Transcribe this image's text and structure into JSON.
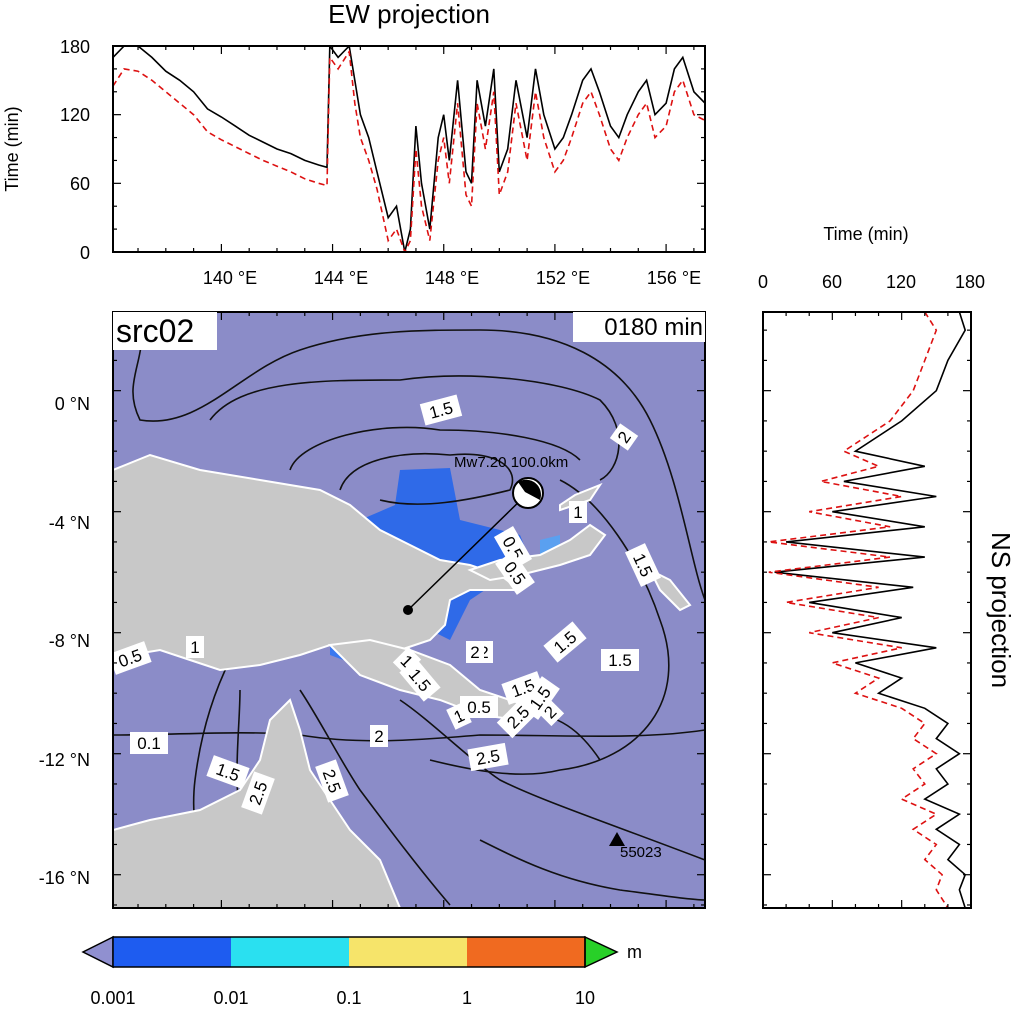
{
  "ew_panel": {
    "title": "EW projection",
    "ylabel": "Time (min)",
    "y_ticks": [
      "0",
      "60",
      "120",
      "180"
    ],
    "x_ticks": [
      "140 °E",
      "144 °E",
      "148 °E",
      "152 °E",
      "156 °E"
    ]
  },
  "ns_panel": {
    "title": "NS projection",
    "xlabel": "Time (min)",
    "x_ticks": [
      "0",
      "60",
      "120",
      "180"
    ]
  },
  "map": {
    "label": "src02",
    "time_label": "0180 min",
    "lat_ticks": [
      "0 °N",
      "-4 °N",
      "-8 °N",
      "-12 °N",
      "-16 °N"
    ],
    "event_label": "Mw7.20 100.0km",
    "station_label": "55023",
    "contour_labels": [
      "1.5",
      "2",
      "0.5",
      "1",
      "1.5",
      "1.5",
      "0.5",
      "1",
      "2",
      "0.1",
      "1.5",
      "1.5",
      "2.5",
      "2",
      "1",
      "1",
      "2",
      "2.5",
      "0.5",
      "1.5",
      "2.5",
      "1.5",
      "1.5",
      "2",
      "0.5",
      "2.5"
    ],
    "colors": {
      "ocean": "#8b8cc8",
      "land": "#c8c8c8",
      "wave_dark": "#2f6ae8",
      "wave_light": "#5aa0f0"
    }
  },
  "colorbar": {
    "unit": "m",
    "ticks": [
      "0.001",
      "0.01",
      "0.1",
      "1",
      "10"
    ],
    "colors": [
      "#1e5cf0",
      "#16b8f0",
      "#9cf2f0",
      "#f4d040",
      "#f08a1c",
      "#e82010",
      "#28d028",
      "#9090d0"
    ]
  },
  "chart_data": [
    {
      "type": "line",
      "title": "EW projection",
      "xlabel": "",
      "ylabel": "Time (min)",
      "xlim": [
        136.1,
        157.4
      ],
      "ylim": [
        0,
        180
      ],
      "series": [
        {
          "x": [
            136.1,
            136.5,
            137,
            137.5,
            138,
            138.5,
            139,
            139.5,
            140,
            140.5,
            141,
            141.5,
            142,
            142.5,
            143,
            143.5,
            143.8,
            143.9,
            144.2,
            144.6,
            144.8,
            145,
            145.3,
            145.6,
            146,
            146.3,
            146.6,
            146.8,
            147,
            147.2,
            147.5,
            147.8,
            148,
            148.2,
            148.5,
            148.8,
            149,
            149.2,
            149.5,
            149.8,
            150,
            150.3,
            150.6,
            151,
            151.3,
            151.6,
            152,
            152.3,
            152.6,
            153,
            153.3,
            153.6,
            154,
            154.3,
            154.6,
            155,
            155.3,
            155.6,
            156,
            156.3,
            156.6,
            157,
            157.4
          ],
          "values": [
            170,
            180,
            180,
            170,
            158,
            150,
            140,
            125,
            118,
            110,
            102,
            96,
            90,
            86,
            80,
            76,
            74,
            180,
            170,
            180,
            150,
            120,
            100,
            70,
            30,
            40,
            0,
            20,
            110,
            60,
            20,
            100,
            120,
            80,
            150,
            70,
            60,
            150,
            110,
            160,
            70,
            90,
            150,
            100,
            160,
            120,
            90,
            100,
            120,
            150,
            160,
            140,
            110,
            100,
            120,
            140,
            150,
            120,
            130,
            160,
            170,
            140,
            130
          ]
        },
        {
          "x": [
            136.1,
            136.5,
            137,
            137.5,
            138,
            138.5,
            139,
            139.5,
            140,
            140.5,
            141,
            141.5,
            142,
            142.5,
            143,
            143.5,
            143.8,
            143.9,
            144.2,
            144.6,
            144.8,
            145,
            145.3,
            145.6,
            146,
            146.3,
            146.6,
            146.8,
            147,
            147.2,
            147.5,
            147.8,
            148,
            148.2,
            148.5,
            148.8,
            149,
            149.2,
            149.5,
            149.8,
            150,
            150.3,
            150.6,
            151,
            151.3,
            151.6,
            152,
            152.3,
            152.6,
            153,
            153.3,
            153.6,
            154,
            154.3,
            154.6,
            155,
            155.3,
            155.6,
            156,
            156.3,
            156.6,
            157,
            157.4
          ],
          "values": [
            145,
            160,
            158,
            150,
            140,
            130,
            120,
            105,
            98,
            92,
            86,
            80,
            75,
            70,
            64,
            60,
            58,
            170,
            160,
            175,
            130,
            100,
            80,
            55,
            10,
            20,
            0,
            10,
            90,
            40,
            10,
            80,
            100,
            60,
            130,
            50,
            40,
            130,
            90,
            140,
            50,
            70,
            130,
            80,
            140,
            100,
            70,
            80,
            100,
            130,
            140,
            120,
            90,
            80,
            100,
            120,
            130,
            100,
            110,
            140,
            150,
            120,
            115
          ]
        }
      ]
    },
    {
      "type": "line",
      "title": "NS projection",
      "xlabel": "Time (min)",
      "ylabel": "",
      "xlim": [
        0,
        180
      ],
      "ylim": [
        -17.1,
        2.6
      ],
      "series": [
        {
          "y": [
            2.6,
            2,
            1,
            0,
            -1,
            -2,
            -2.5,
            -3,
            -3.5,
            -4,
            -4.5,
            -5,
            -5.5,
            -6,
            -6.5,
            -7,
            -7.5,
            -8,
            -8.5,
            -9,
            -9.5,
            -10,
            -10.5,
            -11,
            -11.5,
            -12,
            -12.5,
            -13,
            -13.5,
            -14,
            -14.5,
            -15,
            -15.5,
            -16,
            -16.5,
            -17.1
          ],
          "values": [
            170,
            175,
            160,
            150,
            120,
            80,
            140,
            70,
            150,
            60,
            140,
            20,
            140,
            10,
            130,
            40,
            120,
            60,
            150,
            80,
            120,
            100,
            140,
            160,
            150,
            170,
            150,
            160,
            140,
            170,
            150,
            170,
            160,
            175,
            170,
            175
          ]
        },
        {
          "y": [
            2.6,
            2,
            1,
            0,
            -1,
            -2,
            -2.5,
            -3,
            -3.5,
            -4,
            -4.5,
            -5,
            -5.5,
            -6,
            -6.5,
            -7,
            -7.5,
            -8,
            -8.5,
            -9,
            -9.5,
            -10,
            -10.5,
            -11,
            -11.5,
            -12,
            -12.5,
            -13,
            -13.5,
            -14,
            -14.5,
            -15,
            -15.5,
            -16,
            -16.5,
            -17.1
          ],
          "values": [
            140,
            150,
            140,
            130,
            110,
            70,
            100,
            50,
            120,
            40,
            110,
            5,
            110,
            5,
            100,
            20,
            100,
            40,
            120,
            60,
            100,
            80,
            120,
            140,
            130,
            150,
            130,
            140,
            120,
            150,
            130,
            150,
            140,
            155,
            150,
            160
          ]
        }
      ]
    }
  ]
}
